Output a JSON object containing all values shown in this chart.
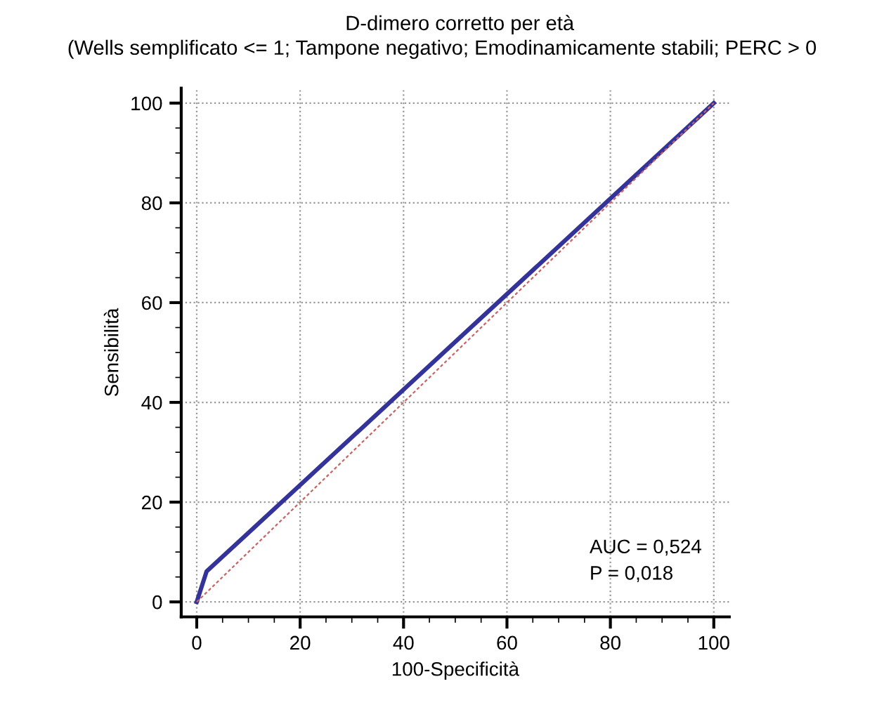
{
  "chart_data": {
    "type": "line",
    "title": "D-dimero corretto per età",
    "subtitle": "(Wells semplificato <= 1; Tampone negativo; Emodinamicamente stabili; PERC > 0",
    "xlabel": "100-Specificità",
    "ylabel": "Sensibilità",
    "series": [
      {
        "color": "#33339a",
        "x": [
          0,
          1.9,
          100
        ],
        "values": [
          0,
          6.1,
          100
        ],
        "line_style": "solid"
      },
      {
        "color": "#c86464",
        "x": [
          0,
          100
        ],
        "values": [
          0,
          100
        ],
        "line_style": "dashed"
      }
    ],
    "xlim": [
      -3,
      103
    ],
    "ylim": [
      -3,
      103
    ],
    "xticks": [
      0,
      20,
      40,
      60,
      80,
      100
    ],
    "yticks": [
      0,
      20,
      40,
      60,
      80,
      100
    ],
    "grid": true,
    "marker": "none",
    "annotations": [
      "AUC = 0,524",
      "P = 0,018"
    ]
  }
}
